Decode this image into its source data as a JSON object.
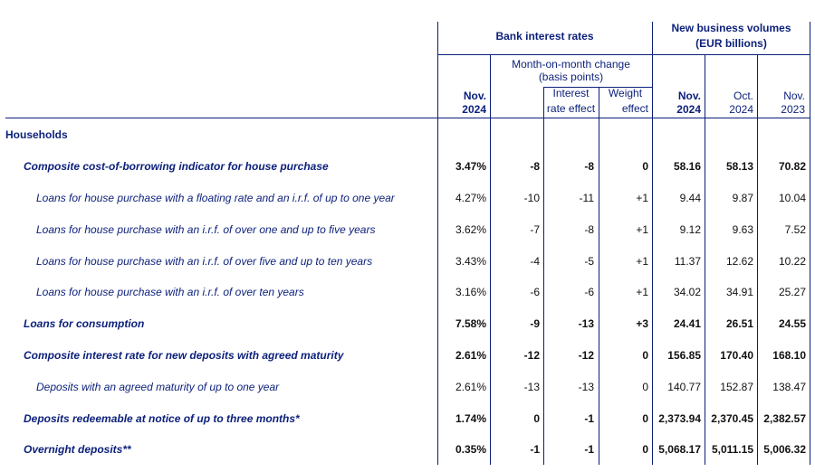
{
  "headers": {
    "bank_interest_rates": "Bank interest rates",
    "new_business_volumes": "New business volumes",
    "eur_billions": "(EUR billions)",
    "mom_change": "Month-on-month change",
    "basis_points": "(basis points)",
    "interest": "Interest",
    "rate_effect": "rate effect",
    "weight": "Weight",
    "effect": "effect",
    "rate_nov": "Nov.",
    "rate_2024": "2024",
    "vol_nov": "Nov.",
    "vol_nov_year": "2024",
    "vol_oct": "Oct.",
    "vol_oct_year": "2024",
    "vol_nov23": "Nov.",
    "vol_nov23_year": "2023"
  },
  "rows": [
    {
      "label": "Households",
      "level": 0,
      "rate": "",
      "mom": "",
      "ire": "",
      "we": "",
      "v1": "",
      "v2": "",
      "v3": ""
    },
    {
      "label": "Composite cost-of-borrowing indicator for house purchase",
      "level": 1,
      "rate": "3.47%",
      "mom": "-8",
      "ire": "-8",
      "we": "0",
      "v1": "58.16",
      "v2": "58.13",
      "v3": "70.82"
    },
    {
      "label": "Loans for house purchase with a floating rate and an i.r.f. of up to one year",
      "level": 2,
      "rate": "4.27%",
      "mom": "-10",
      "ire": "-11",
      "we": "+1",
      "v1": "9.44",
      "v2": "9.87",
      "v3": "10.04"
    },
    {
      "label": "Loans for house purchase with an i.r.f. of over one and up to five years",
      "level": 2,
      "rate": "3.62%",
      "mom": "-7",
      "ire": "-8",
      "we": "+1",
      "v1": "9.12",
      "v2": "9.63",
      "v3": "7.52"
    },
    {
      "label": "Loans for house purchase with an i.r.f. of over five and up to ten years",
      "level": 2,
      "rate": "3.43%",
      "mom": "-4",
      "ire": "-5",
      "we": "+1",
      "v1": "11.37",
      "v2": "12.62",
      "v3": "10.22"
    },
    {
      "label": "Loans for house purchase with an i.r.f. of over ten years",
      "level": 2,
      "rate": "3.16%",
      "mom": "-6",
      "ire": "-6",
      "we": "+1",
      "v1": "34.02",
      "v2": "34.91",
      "v3": "25.27"
    },
    {
      "label": "Loans for consumption",
      "level": 1,
      "rate": "7.58%",
      "mom": "-9",
      "ire": "-13",
      "we": "+3",
      "v1": "24.41",
      "v2": "26.51",
      "v3": "24.55"
    },
    {
      "label": "Composite interest rate for new deposits with agreed maturity",
      "level": 1,
      "rate": "2.61%",
      "mom": "-12",
      "ire": "-12",
      "we": "0",
      "v1": "156.85",
      "v2": "170.40",
      "v3": "168.10"
    },
    {
      "label": "Deposits with an agreed maturity of up to one year",
      "level": 2,
      "rate": "2.61%",
      "mom": "-13",
      "ire": "-13",
      "we": "0",
      "v1": "140.77",
      "v2": "152.87",
      "v3": "138.47"
    },
    {
      "label": "Deposits redeemable at notice of up to three months*",
      "level": 1,
      "rate": "1.74%",
      "mom": "0",
      "ire": "-1",
      "we": "0",
      "v1": "2,373.94",
      "v2": "2,370.45",
      "v3": "2,382.57"
    },
    {
      "label": "Overnight deposits**",
      "level": 1,
      "rate": "0.35%",
      "mom": "-1",
      "ire": "-1",
      "we": "0",
      "v1": "5,068.17",
      "v2": "5,011.15",
      "v3": "5,006.32"
    }
  ]
}
